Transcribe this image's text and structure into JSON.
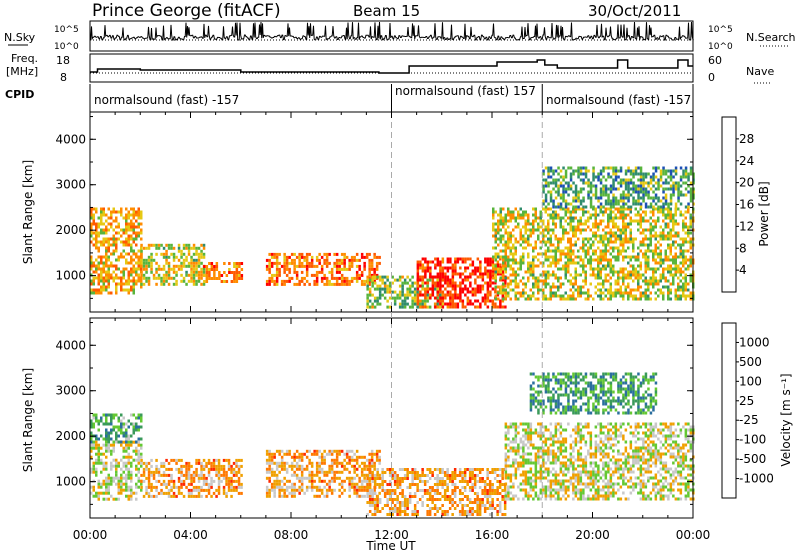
{
  "header": {
    "station": "Prince George (fitACF)",
    "beam": "Beam 15",
    "date": "30/Oct/2011"
  },
  "strips": {
    "nsky_label": "N.Sky",
    "nsky_ticks": [
      "10^5",
      "10^0"
    ],
    "nsearch_label": "N.Search",
    "freq_label_1": "Freq.",
    "freq_label_2": "[MHz]",
    "freq_ticks": [
      "18",
      "8"
    ],
    "nave_label": "Nave",
    "nave_ticks": [
      "60",
      "0"
    ],
    "cpid_label": "CPID",
    "cpid_segments": [
      {
        "label": "normalsound (fast) -157",
        "start_hour": 0
      },
      {
        "label": "normalsound (fast) 157",
        "start_hour": 12
      },
      {
        "label": "normalsound (fast) -157",
        "start_hour": 18
      }
    ]
  },
  "x_axis": {
    "label": "Time UT",
    "ticks": [
      "00:00",
      "04:00",
      "08:00",
      "12:00",
      "16:00",
      "20:00",
      "00:00"
    ]
  },
  "chart_data": [
    {
      "type": "heatmap",
      "panel": "power",
      "ylabel": "Slant Range [km]",
      "yticks": [
        "1000",
        "2000",
        "3000",
        "4000"
      ],
      "ylim": [
        200,
        4600
      ],
      "xlim_hours": [
        0,
        24
      ],
      "colorbar_label": "Power [dB]",
      "colorbar_ticks": [
        "4",
        "8",
        "12",
        "16",
        "20",
        "24",
        "28"
      ],
      "colors": [
        "#1a1aff",
        "#1c50b4",
        "#2f8c6c",
        "#58b43c",
        "#e6c814",
        "#ff8c00",
        "#ff5a00",
        "#ff0000"
      ],
      "regions": [
        {
          "t0": 0.0,
          "t1": 2.0,
          "r0": 600,
          "r1": 2500,
          "level": 0.65
        },
        {
          "t0": 2.0,
          "t1": 4.5,
          "r0": 800,
          "r1": 1700,
          "level": 0.55
        },
        {
          "t0": 4.5,
          "t1": 6.0,
          "r0": 900,
          "r1": 1300,
          "level": 0.8
        },
        {
          "t0": 7.0,
          "t1": 11.5,
          "r0": 800,
          "r1": 1500,
          "level": 0.8
        },
        {
          "t0": 11.0,
          "t1": 14.0,
          "r0": 300,
          "r1": 1000,
          "level": 0.45
        },
        {
          "t0": 13.0,
          "t1": 16.5,
          "r0": 300,
          "r1": 1400,
          "level": 0.95
        },
        {
          "t0": 16.0,
          "t1": 24.0,
          "r0": 500,
          "r1": 2500,
          "level": 0.55
        },
        {
          "t0": 18.0,
          "t1": 24.0,
          "r0": 2500,
          "r1": 3400,
          "level": 0.35
        }
      ]
    },
    {
      "type": "heatmap",
      "panel": "velocity",
      "ylabel": "Slant Range [km]",
      "yticks": [
        "1000",
        "2000",
        "3000",
        "4000"
      ],
      "ylim": [
        200,
        4600
      ],
      "xlim_hours": [
        0,
        24
      ],
      "colorbar_label": "Velocity [m s⁻¹]",
      "colorbar_ticks": [
        "1000",
        "500",
        "100",
        "25",
        "-25",
        "-100",
        "-500",
        "-1000"
      ],
      "colors": [
        "#1a3ac8",
        "#2a6e9e",
        "#3a9a5a",
        "#64c832",
        "#c8c8c8",
        "#f0a000",
        "#ff7800",
        "#ff2800",
        "#e00000"
      ],
      "regions": [
        {
          "t0": 0.0,
          "t1": 2.0,
          "r0": 600,
          "r1": 1900,
          "level": 0.5
        },
        {
          "t0": 0.0,
          "t1": 2.0,
          "r0": 1900,
          "r1": 2500,
          "level": 0.3
        },
        {
          "t0": 2.0,
          "t1": 6.0,
          "r0": 700,
          "r1": 1500,
          "level": 0.65
        },
        {
          "t0": 7.0,
          "t1": 11.5,
          "r0": 700,
          "r1": 1700,
          "level": 0.65
        },
        {
          "t0": 11.0,
          "t1": 16.5,
          "r0": 300,
          "r1": 1300,
          "level": 0.65
        },
        {
          "t0": 16.5,
          "t1": 24.0,
          "r0": 600,
          "r1": 2300,
          "level": 0.5
        },
        {
          "t0": 17.5,
          "t1": 22.5,
          "r0": 2500,
          "r1": 3400,
          "level": 0.25
        }
      ]
    }
  ]
}
